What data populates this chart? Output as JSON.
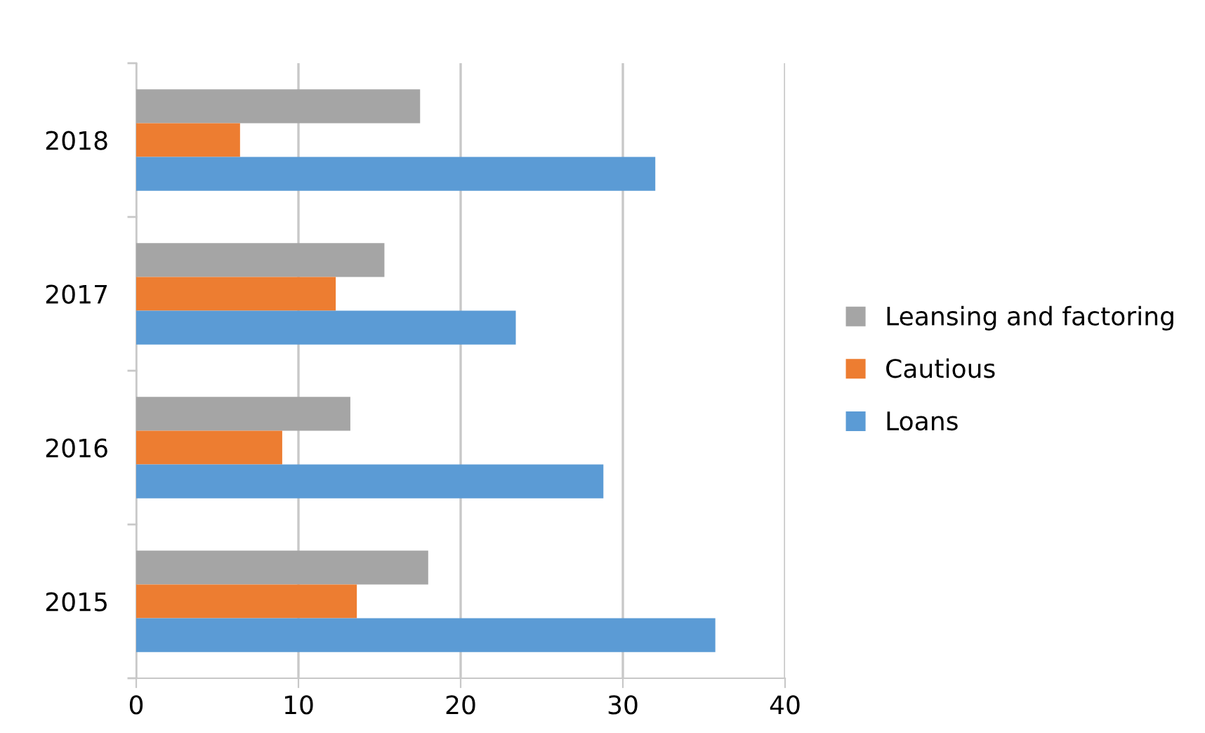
{
  "chart_data": {
    "type": "bar",
    "orientation": "horizontal",
    "categories": [
      "2018",
      "2017",
      "2016",
      "2015"
    ],
    "series": [
      {
        "name": "Leansing and factoring",
        "color": "#a5a5a5",
        "values": [
          17.5,
          15.3,
          13.2,
          18.0
        ]
      },
      {
        "name": "Cautious",
        "color": "#ed7d31",
        "values": [
          6.4,
          12.3,
          9.0,
          13.6
        ]
      },
      {
        "name": "Loans",
        "color": "#5b9bd5",
        "values": [
          32.0,
          23.4,
          28.8,
          35.7
        ]
      }
    ],
    "xlim": [
      0,
      40
    ],
    "xticks": [
      0,
      10,
      20,
      30,
      40
    ],
    "grid": "x",
    "legend": "right"
  }
}
